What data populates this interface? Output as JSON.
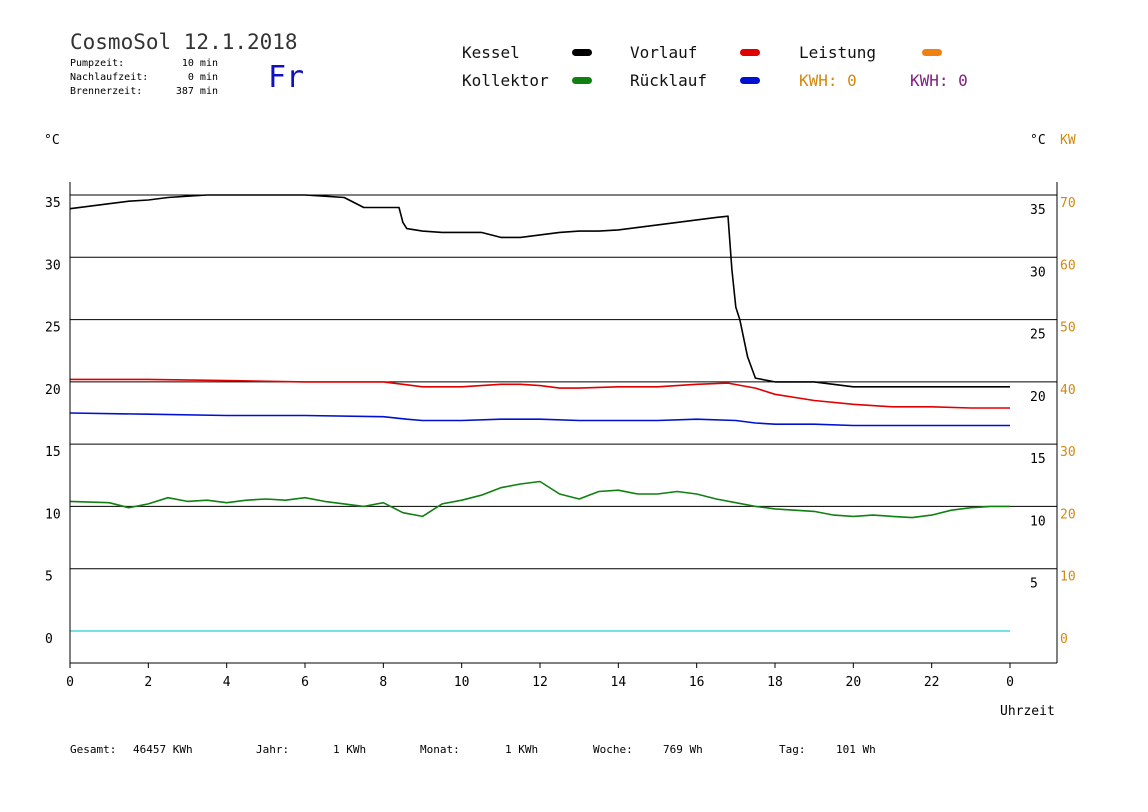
{
  "header": {
    "title": "CosmoSol 12.1.2018",
    "stats": [
      {
        "label": "Pumpzeit:",
        "value": "10 min"
      },
      {
        "label": "Nachlaufzeit:",
        "value": "0 min"
      },
      {
        "label": "Brennerzeit:",
        "value": "387 min"
      }
    ],
    "weekday": "Fr"
  },
  "legend": {
    "kessel": {
      "label": "Kessel",
      "color": "#000000"
    },
    "vorlauf": {
      "label": "Vorlauf",
      "color": "#e00000"
    },
    "leistung": {
      "label": "Leistung",
      "color": "#f08010"
    },
    "kollektor": {
      "label": "Kollektor",
      "color": "#108010"
    },
    "ruecklauf": {
      "label": "Rücklauf",
      "color": "#0010d0"
    },
    "kwh1": {
      "label": "KWH: 0",
      "color": "#d08a10"
    },
    "kwh2": {
      "label": "KWH: 0",
      "color": "#802080"
    }
  },
  "units": {
    "left": "°C",
    "right_c": "°C",
    "right_kw": "KW"
  },
  "footer": {
    "gesamt": {
      "label": "Gesamt:",
      "value": "46457 KWh"
    },
    "jahr": {
      "label": "Jahr:",
      "value": "1 KWh"
    },
    "monat": {
      "label": "Monat:",
      "value": "1 KWh"
    },
    "woche": {
      "label": "Woche:",
      "value": "769 Wh"
    },
    "tag": {
      "label": "Tag:",
      "value": "101 Wh"
    }
  },
  "chart_data": {
    "type": "line",
    "xlabel": "Uhrzeit",
    "xlim": [
      0,
      24
    ],
    "x_ticks": [
      "0",
      "2",
      "4",
      "6",
      "8",
      "10",
      "12",
      "14",
      "16",
      "18",
      "20",
      "22",
      "0"
    ],
    "ylim": [
      -2.5,
      36
    ],
    "y_ticks": [
      0,
      5,
      10,
      15,
      20,
      25,
      30,
      35
    ],
    "y_right_kw_ticks": [
      0,
      10,
      20,
      30,
      40,
      50,
      60,
      70
    ],
    "grid": true,
    "series": [
      {
        "name": "Kessel",
        "color": "#000000",
        "x": [
          0,
          0.5,
          1,
          1.5,
          2,
          2.5,
          3,
          3.5,
          4,
          4.5,
          5,
          5.5,
          6,
          6.5,
          7,
          7.5,
          8,
          8.4,
          8.5,
          8.6,
          9,
          9.5,
          10,
          10.5,
          11,
          11.5,
          12,
          12.5,
          13,
          13.5,
          14,
          14.5,
          15,
          15.5,
          16,
          16.5,
          16.8,
          16.9,
          17,
          17.1,
          17.3,
          17.5,
          18,
          19,
          20,
          21,
          22,
          23,
          24
        ],
        "y": [
          33.9,
          34.1,
          34.3,
          34.5,
          34.6,
          34.8,
          34.9,
          35.0,
          35.0,
          35.0,
          35.0,
          35.0,
          35.0,
          34.9,
          34.8,
          34.0,
          34.0,
          34.0,
          32.8,
          32.3,
          32.1,
          32.0,
          32.0,
          32.0,
          31.6,
          31.6,
          31.8,
          32.0,
          32.1,
          32.1,
          32.2,
          32.4,
          32.6,
          32.8,
          33.0,
          33.2,
          33.3,
          29.0,
          26.0,
          25.0,
          22.0,
          20.3,
          20.0,
          20.0,
          19.6,
          19.6,
          19.6,
          19.6,
          19.6
        ]
      },
      {
        "name": "Vorlauf",
        "color": "#e00000",
        "x": [
          0,
          2,
          4,
          6,
          7,
          8,
          8.5,
          9,
          10,
          11,
          11.5,
          12,
          12.5,
          13,
          14,
          15,
          16,
          16.8,
          17.5,
          18,
          19,
          20,
          21,
          22,
          23,
          24
        ],
        "y": [
          20.2,
          20.2,
          20.1,
          20.0,
          20.0,
          20.0,
          19.8,
          19.6,
          19.6,
          19.8,
          19.8,
          19.7,
          19.5,
          19.5,
          19.6,
          19.6,
          19.8,
          19.9,
          19.5,
          19.0,
          18.5,
          18.2,
          18.0,
          18.0,
          17.9,
          17.9
        ]
      },
      {
        "name": "Rücklauf",
        "color": "#0010d0",
        "x": [
          0,
          2,
          4,
          6,
          8,
          8.6,
          9,
          10,
          11,
          12,
          13,
          14,
          15,
          16,
          17,
          17.5,
          18,
          19,
          20,
          21,
          22,
          23,
          24
        ],
        "y": [
          17.5,
          17.4,
          17.3,
          17.3,
          17.2,
          17.0,
          16.9,
          16.9,
          17.0,
          17.0,
          16.9,
          16.9,
          16.9,
          17.0,
          16.9,
          16.7,
          16.6,
          16.6,
          16.5,
          16.5,
          16.5,
          16.5,
          16.5
        ]
      },
      {
        "name": "Kollektor",
        "color": "#108010",
        "x": [
          0,
          1,
          1.5,
          2,
          2.5,
          3,
          3.5,
          4,
          4.5,
          5,
          5.5,
          6,
          6.5,
          7,
          7.5,
          8,
          8.5,
          9,
          9.5,
          10,
          10.5,
          11,
          11.5,
          12,
          12.5,
          13,
          13.5,
          14,
          14.5,
          15,
          15.5,
          16,
          16.5,
          17,
          17.5,
          18,
          18.5,
          19,
          19.5,
          20,
          20.5,
          21,
          21.5,
          22,
          22.5,
          23,
          23.5,
          24
        ],
        "y": [
          10.4,
          10.3,
          9.9,
          10.2,
          10.7,
          10.4,
          10.5,
          10.3,
          10.5,
          10.6,
          10.5,
          10.7,
          10.4,
          10.2,
          10.0,
          10.3,
          9.5,
          9.2,
          10.2,
          10.5,
          10.9,
          11.5,
          11.8,
          12.0,
          11.0,
          10.6,
          11.2,
          11.3,
          11.0,
          11.0,
          11.2,
          11.0,
          10.6,
          10.3,
          10.0,
          9.8,
          9.7,
          9.6,
          9.3,
          9.2,
          9.3,
          9.2,
          9.1,
          9.3,
          9.7,
          9.9,
          10.0,
          10.0
        ]
      }
    ]
  }
}
